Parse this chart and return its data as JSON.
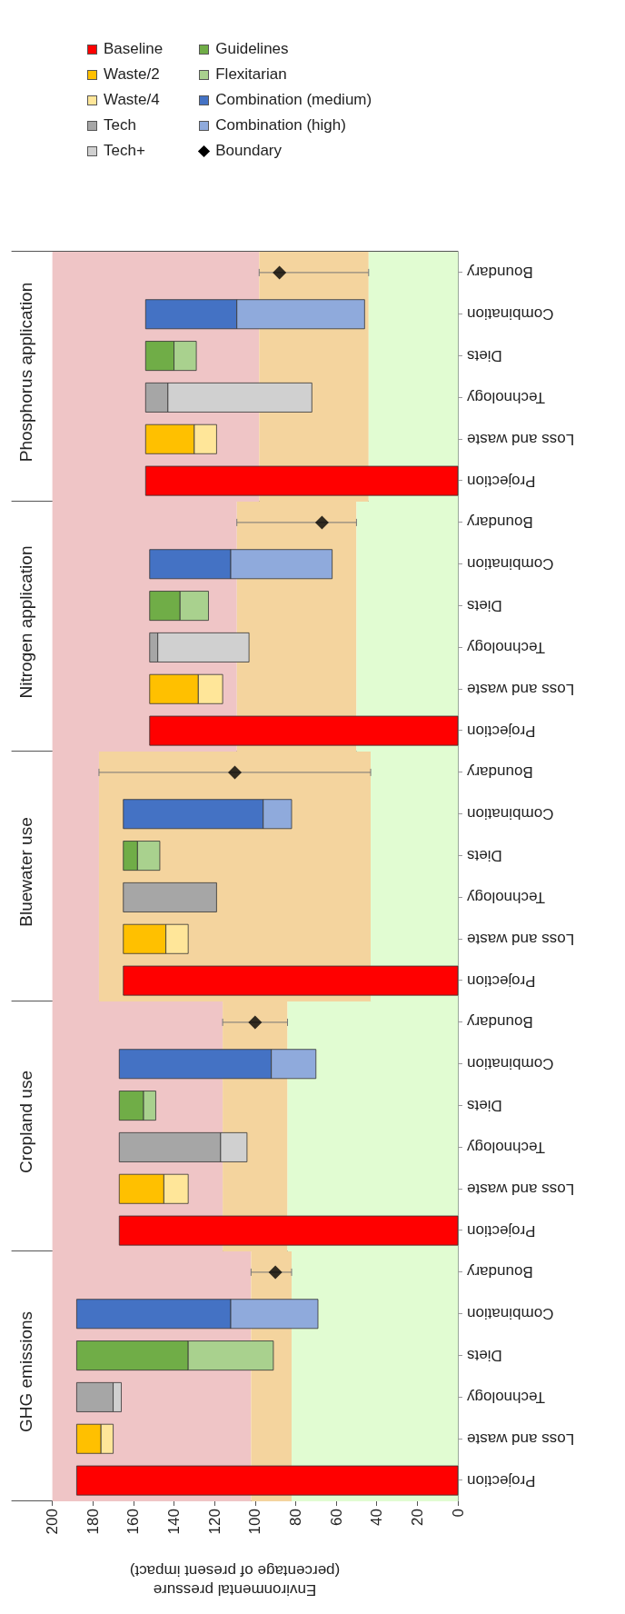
{
  "chart_data": [
    {
      "type": "bar",
      "orientation": "horizontal",
      "title": "Phosphorus application",
      "categories": [
        "Boundary",
        "Combination",
        "Diets",
        "Technology",
        "Loss and waste",
        "Projection"
      ],
      "xlim": [
        220,
        0
      ],
      "xticks": [
        0,
        20,
        40,
        60,
        80,
        100,
        120,
        140,
        160,
        180,
        200
      ],
      "tick_labels": "y",
      "legend": "top",
      "bands": [
        {
          "axis": "x",
          "from": 200,
          "to": 98,
          "color": "#efc5c6"
        },
        {
          "axis": "x",
          "from": 98,
          "to": 44,
          "color": "#f4d49e"
        },
        {
          "axis": "x",
          "from": 44,
          "to": 0,
          "color": "#e1fcd2"
        }
      ],
      "series": [
        {
          "name": "Baseline",
          "color": "#ff0000",
          "values": [
            null,
            null,
            null,
            null,
            null,
            154
          ]
        },
        {
          "name": "Waste/2",
          "color": "#ffc000",
          "values": [
            null,
            null,
            null,
            null,
            24,
            null
          ],
          "base": [
            null,
            null,
            null,
            null,
            130,
            null
          ]
        },
        {
          "name": "Waste/4",
          "color": "#ffe699",
          "values": [
            null,
            null,
            null,
            null,
            11,
            null
          ],
          "base": [
            null,
            null,
            null,
            null,
            119,
            null
          ]
        },
        {
          "name": "Tech",
          "color": "#a6a6a6",
          "values": [
            null,
            null,
            null,
            11,
            null,
            null
          ],
          "base": [
            null,
            null,
            null,
            143,
            null,
            null
          ]
        },
        {
          "name": "Tech+",
          "color": "#d0d0d0",
          "values": [
            null,
            null,
            null,
            71,
            null,
            null
          ],
          "base": [
            null,
            null,
            null,
            72,
            null,
            null
          ]
        },
        {
          "name": "Guidelines",
          "color": "#70ad47",
          "values": [
            null,
            null,
            14,
            null,
            null,
            null
          ],
          "base": [
            null,
            null,
            140,
            null,
            null,
            null
          ]
        },
        {
          "name": "Flexitarian",
          "color": "#a9d18e",
          "values": [
            null,
            null,
            11,
            null,
            null,
            null
          ],
          "base": [
            null,
            null,
            129,
            null,
            null,
            null
          ]
        },
        {
          "name": "Combination (medium)",
          "color": "#4472c4",
          "values": [
            null,
            45,
            null,
            null,
            null,
            null
          ],
          "base": [
            null,
            109,
            null,
            null,
            null,
            null
          ]
        },
        {
          "name": "Combination (high)",
          "color": "#8faadc",
          "values": [
            null,
            63,
            null,
            null,
            null,
            null
          ],
          "base": [
            null,
            46,
            null,
            null,
            null,
            null
          ]
        },
        {
          "name": "Boundary",
          "type": "scatter",
          "marker": "diamond",
          "color": "#000000",
          "values": [
            88,
            null,
            null,
            null,
            null,
            null
          ],
          "errors": [
            [
              44,
              98
            ],
            null,
            null,
            null,
            null,
            null
          ]
        }
      ]
    },
    {
      "type": "bar",
      "orientation": "horizontal",
      "title": "Nitrogen application",
      "categories": [
        "Boundary",
        "Combination",
        "Diets",
        "Technology",
        "Loss and waste",
        "Projection"
      ],
      "xlim": [
        220,
        0
      ],
      "xticks": [
        0,
        20,
        40,
        60,
        80,
        100,
        120,
        140,
        160,
        180,
        200
      ],
      "tick_labels": "y",
      "bands": [
        {
          "axis": "x",
          "from": 200,
          "to": 109,
          "color": "#efc5c6"
        },
        {
          "axis": "x",
          "from": 109,
          "to": 50,
          "color": "#f4d49e"
        },
        {
          "axis": "x",
          "from": 50,
          "to": 0,
          "color": "#e1fcd2"
        }
      ],
      "series": [
        {
          "color": "#ff0000",
          "values": [
            null,
            null,
            null,
            null,
            null,
            152
          ]
        },
        {
          "color": "#ffc000",
          "values": [
            null,
            null,
            null,
            null,
            24,
            null
          ],
          "base": [
            null,
            null,
            null,
            null,
            128,
            null
          ]
        },
        {
          "color": "#ffe699",
          "values": [
            null,
            null,
            null,
            null,
            12,
            null
          ],
          "base": [
            null,
            null,
            null,
            null,
            116,
            null
          ]
        },
        {
          "color": "#a6a6a6",
          "values": [
            null,
            null,
            null,
            4,
            null,
            null
          ],
          "base": [
            null,
            null,
            null,
            148,
            null,
            null
          ]
        },
        {
          "color": "#d0d0d0",
          "values": [
            null,
            null,
            null,
            45,
            null,
            null
          ],
          "base": [
            null,
            null,
            null,
            103,
            null,
            null
          ]
        },
        {
          "color": "#70ad47",
          "values": [
            null,
            null,
            15,
            null,
            null,
            null
          ],
          "base": [
            null,
            null,
            137,
            null,
            null,
            null
          ]
        },
        {
          "color": "#a9d18e",
          "values": [
            null,
            null,
            14,
            null,
            null,
            null
          ],
          "base": [
            null,
            null,
            123,
            null,
            null,
            null
          ]
        },
        {
          "color": "#4472c4",
          "values": [
            null,
            40,
            null,
            null,
            null,
            null
          ],
          "base": [
            null,
            112,
            null,
            null,
            null,
            null
          ]
        },
        {
          "color": "#8faadc",
          "values": [
            null,
            50,
            null,
            null,
            null,
            null
          ],
          "base": [
            null,
            62,
            null,
            null,
            null,
            null
          ]
        },
        {
          "type": "scatter",
          "marker": "diamond",
          "color": "#000000",
          "values": [
            67,
            null,
            null,
            null,
            null,
            null
          ],
          "errors": [
            [
              50,
              109
            ],
            null,
            null,
            null,
            null,
            null
          ]
        }
      ]
    },
    {
      "type": "bar",
      "orientation": "horizontal",
      "title": "Bluewater use",
      "categories": [
        "Boundary",
        "Combination",
        "Diets",
        "Technology",
        "Loss and waste",
        "Projection"
      ],
      "xlim": [
        220,
        0
      ],
      "xticks": [
        0,
        20,
        40,
        60,
        80,
        100,
        120,
        140,
        160,
        180,
        200
      ],
      "tick_labels": "y",
      "bands": [
        {
          "axis": "x",
          "from": 200,
          "to": 177,
          "color": "#efc5c6"
        },
        {
          "axis": "x",
          "from": 177,
          "to": 43,
          "color": "#f4d49e"
        },
        {
          "axis": "x",
          "from": 43,
          "to": 0,
          "color": "#e1fcd2"
        }
      ],
      "series": [
        {
          "color": "#ff0000",
          "values": [
            null,
            null,
            null,
            null,
            null,
            165
          ]
        },
        {
          "color": "#ffc000",
          "values": [
            null,
            null,
            null,
            null,
            21,
            null
          ],
          "base": [
            null,
            null,
            null,
            null,
            144,
            null
          ]
        },
        {
          "color": "#ffe699",
          "values": [
            null,
            null,
            null,
            null,
            11,
            null
          ],
          "base": [
            null,
            null,
            null,
            null,
            133,
            null
          ]
        },
        {
          "color": "#a6a6a6",
          "values": [
            null,
            null,
            null,
            46,
            null,
            null
          ],
          "base": [
            null,
            null,
            null,
            119,
            null,
            null
          ]
        },
        {
          "color": "#70ad47",
          "values": [
            null,
            null,
            7,
            null,
            null,
            null
          ],
          "base": [
            null,
            null,
            158,
            null,
            null,
            null
          ]
        },
        {
          "color": "#a9d18e",
          "values": [
            null,
            null,
            11,
            null,
            null,
            null
          ],
          "base": [
            null,
            null,
            147,
            null,
            null,
            null
          ]
        },
        {
          "color": "#4472c4",
          "values": [
            null,
            69,
            null,
            null,
            null,
            null
          ],
          "base": [
            null,
            96,
            null,
            null,
            null,
            null
          ]
        },
        {
          "color": "#8faadc",
          "values": [
            null,
            14,
            null,
            null,
            null,
            null
          ],
          "base": [
            null,
            82,
            null,
            null,
            null,
            null
          ]
        },
        {
          "type": "scatter",
          "marker": "diamond",
          "color": "#000000",
          "values": [
            110,
            null,
            null,
            null,
            null,
            null
          ],
          "errors": [
            [
              43,
              177
            ],
            null,
            null,
            null,
            null,
            null
          ]
        }
      ]
    },
    {
      "type": "bar",
      "orientation": "horizontal",
      "title": "Cropland use",
      "categories": [
        "Boundary",
        "Combination",
        "Diets",
        "Technology",
        "Loss and waste",
        "Projection"
      ],
      "xlim": [
        220,
        0
      ],
      "xticks": [
        0,
        20,
        40,
        60,
        80,
        100,
        120,
        140,
        160,
        180,
        200
      ],
      "tick_labels": "y",
      "bands": [
        {
          "axis": "x",
          "from": 200,
          "to": 116,
          "color": "#efc5c6"
        },
        {
          "axis": "x",
          "from": 116,
          "to": 84,
          "color": "#f4d49e"
        },
        {
          "axis": "x",
          "from": 84,
          "to": 0,
          "color": "#e1fcd2"
        }
      ],
      "series": [
        {
          "color": "#ff0000",
          "values": [
            null,
            null,
            null,
            null,
            null,
            167
          ]
        },
        {
          "color": "#ffc000",
          "values": [
            null,
            null,
            null,
            null,
            22,
            null
          ],
          "base": [
            null,
            null,
            null,
            null,
            145,
            null
          ]
        },
        {
          "color": "#ffe699",
          "values": [
            null,
            null,
            null,
            null,
            12,
            null
          ],
          "base": [
            null,
            null,
            null,
            null,
            133,
            null
          ]
        },
        {
          "color": "#a6a6a6",
          "values": [
            null,
            null,
            null,
            50,
            null,
            null
          ],
          "base": [
            null,
            null,
            null,
            117,
            null,
            null
          ]
        },
        {
          "color": "#d0d0d0",
          "values": [
            null,
            null,
            null,
            13,
            null,
            null
          ],
          "base": [
            null,
            null,
            null,
            104,
            null,
            null
          ]
        },
        {
          "color": "#70ad47",
          "values": [
            null,
            null,
            12,
            null,
            null,
            null
          ],
          "base": [
            null,
            null,
            155,
            null,
            null,
            null
          ]
        },
        {
          "color": "#a9d18e",
          "values": [
            null,
            null,
            6,
            null,
            null,
            null
          ],
          "base": [
            null,
            null,
            149,
            null,
            null,
            null
          ]
        },
        {
          "color": "#4472c4",
          "values": [
            null,
            75,
            null,
            null,
            null,
            null
          ],
          "base": [
            null,
            92,
            null,
            null,
            null,
            null
          ]
        },
        {
          "color": "#8faadc",
          "values": [
            null,
            22,
            null,
            null,
            null,
            null
          ],
          "base": [
            null,
            70,
            null,
            null,
            null,
            null
          ]
        },
        {
          "type": "scatter",
          "marker": "diamond",
          "color": "#000000",
          "values": [
            100,
            null,
            null,
            null,
            null,
            null
          ],
          "errors": [
            [
              84,
              116
            ],
            null,
            null,
            null,
            null,
            null
          ]
        }
      ]
    },
    {
      "type": "bar",
      "orientation": "horizontal",
      "title": "GHG emissions",
      "xlabel": "Environmental pressure\n(percentage of present impact)",
      "categories": [
        "Boundary",
        "Combination",
        "Diets",
        "Technology",
        "Loss and waste",
        "Projection"
      ],
      "xlim": [
        220,
        0
      ],
      "xticks": [
        0,
        20,
        40,
        60,
        80,
        100,
        120,
        140,
        160,
        180,
        200
      ],
      "bands": [
        {
          "axis": "x",
          "from": 200,
          "to": 102,
          "color": "#efc5c6"
        },
        {
          "axis": "x",
          "from": 102,
          "to": 82,
          "color": "#f4d49e"
        },
        {
          "axis": "x",
          "from": 82,
          "to": 0,
          "color": "#e1fcd2"
        }
      ],
      "series": [
        {
          "color": "#ff0000",
          "values": [
            null,
            null,
            null,
            null,
            null,
            188
          ]
        },
        {
          "color": "#ffc000",
          "values": [
            null,
            null,
            null,
            null,
            12,
            null
          ],
          "base": [
            null,
            null,
            null,
            null,
            176,
            null
          ]
        },
        {
          "color": "#ffe699",
          "values": [
            null,
            null,
            null,
            null,
            6,
            null
          ],
          "base": [
            null,
            null,
            null,
            null,
            170,
            null
          ]
        },
        {
          "color": "#a6a6a6",
          "values": [
            null,
            null,
            null,
            18,
            null,
            null
          ],
          "base": [
            null,
            null,
            null,
            170,
            null,
            null
          ]
        },
        {
          "color": "#d0d0d0",
          "values": [
            null,
            null,
            null,
            4,
            null,
            null
          ],
          "base": [
            null,
            null,
            null,
            166,
            null,
            null
          ]
        },
        {
          "color": "#70ad47",
          "values": [
            null,
            null,
            55,
            null,
            null,
            null
          ],
          "base": [
            null,
            null,
            133,
            null,
            null,
            null
          ]
        },
        {
          "color": "#a9d18e",
          "values": [
            null,
            null,
            42,
            null,
            null,
            null
          ],
          "base": [
            null,
            null,
            91,
            null,
            null,
            null
          ]
        },
        {
          "color": "#4472c4",
          "values": [
            null,
            76,
            null,
            null,
            null,
            null
          ],
          "base": [
            null,
            112,
            null,
            null,
            null,
            null
          ]
        },
        {
          "color": "#8faadc",
          "values": [
            null,
            43,
            null,
            null,
            null,
            null
          ],
          "base": [
            null,
            69,
            null,
            null,
            null,
            null
          ]
        },
        {
          "type": "scatter",
          "marker": "diamond",
          "color": "#000000",
          "values": [
            90,
            null,
            null,
            null,
            null,
            null
          ],
          "errors": [
            [
              82,
              102
            ],
            null,
            null,
            null,
            null,
            null
          ]
        }
      ]
    }
  ]
}
